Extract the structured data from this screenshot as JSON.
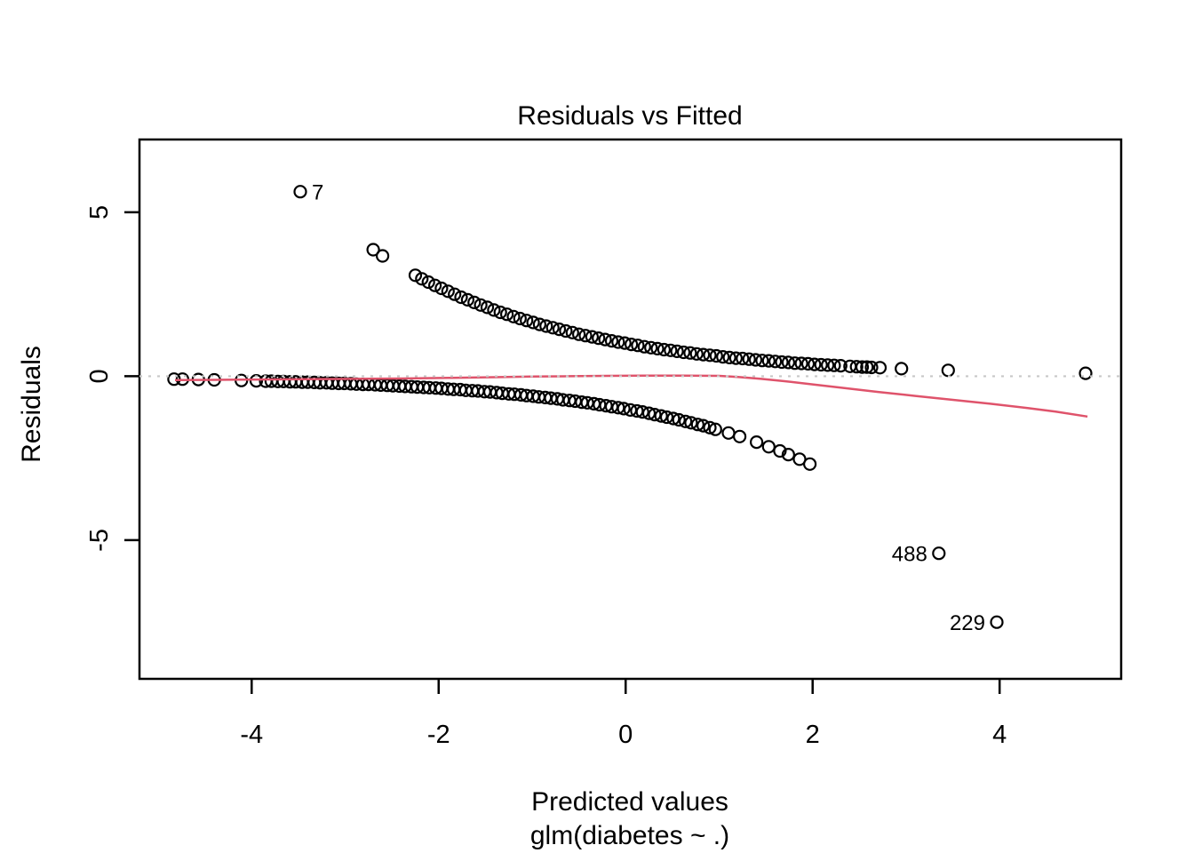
{
  "chart_data": {
    "type": "scatter",
    "title": "Residuals vs Fitted",
    "xlabel": "Predicted values",
    "xlabel_sub": "glm(diabetes ~ .)",
    "ylabel": "Residuals",
    "xlim": [
      -5.2,
      5.3
    ],
    "ylim": [
      -9.23,
      7.22
    ],
    "x_ticks": [
      -4,
      -2,
      0,
      2,
      4
    ],
    "y_ticks": [
      5,
      0,
      -5
    ],
    "grid": false,
    "legend": "none",
    "point_style": {
      "color": "#000000",
      "radius": 6.5,
      "stroke_width": 2.2,
      "filled": false
    },
    "zero_line": {
      "y": 0,
      "color": "#C8C8C8",
      "style": "dotted"
    },
    "smoother": {
      "color": "#DF536B",
      "stroke_width": 2.5,
      "points": [
        [
          -4.82,
          -0.12
        ],
        [
          -4.4,
          -0.11
        ],
        [
          -3.9,
          -0.1
        ],
        [
          -3.4,
          -0.09
        ],
        [
          -2.9,
          -0.08
        ],
        [
          -2.4,
          -0.07
        ],
        [
          -1.9,
          -0.05
        ],
        [
          -1.4,
          -0.03
        ],
        [
          -1.0,
          -0.01
        ],
        [
          -0.6,
          0.0
        ],
        [
          -0.2,
          0.01
        ],
        [
          0.2,
          0.02
        ],
        [
          0.6,
          0.02
        ],
        [
          1.0,
          0.01
        ],
        [
          1.2,
          -0.02
        ],
        [
          1.45,
          -0.08
        ],
        [
          1.7,
          -0.15
        ],
        [
          2.0,
          -0.25
        ],
        [
          2.3,
          -0.35
        ],
        [
          2.7,
          -0.48
        ],
        [
          3.1,
          -0.6
        ],
        [
          3.5,
          -0.72
        ],
        [
          3.9,
          -0.84
        ],
        [
          4.3,
          -0.97
        ],
        [
          4.6,
          -1.08
        ],
        [
          4.94,
          -1.23
        ]
      ]
    },
    "series": [
      {
        "name": "positive-residuals-band",
        "points": [
          [
            -2.7,
            3.86
          ],
          [
            -2.6,
            3.67
          ],
          [
            -2.25,
            3.08
          ],
          [
            -2.18,
            2.97
          ],
          [
            -2.11,
            2.87
          ],
          [
            -2.04,
            2.77
          ],
          [
            -1.97,
            2.68
          ],
          [
            -1.9,
            2.59
          ],
          [
            -1.83,
            2.5
          ],
          [
            -1.76,
            2.41
          ],
          [
            -1.69,
            2.33
          ],
          [
            -1.62,
            2.25
          ],
          [
            -1.55,
            2.17
          ],
          [
            -1.48,
            2.1
          ],
          [
            -1.41,
            2.02
          ],
          [
            -1.34,
            1.95
          ],
          [
            -1.27,
            1.89
          ],
          [
            -1.2,
            1.82
          ],
          [
            -1.13,
            1.76
          ],
          [
            -1.06,
            1.7
          ],
          [
            -0.99,
            1.64
          ],
          [
            -0.92,
            1.58
          ],
          [
            -0.85,
            1.53
          ],
          [
            -0.78,
            1.48
          ],
          [
            -0.71,
            1.43
          ],
          [
            -0.64,
            1.38
          ],
          [
            -0.57,
            1.33
          ],
          [
            -0.5,
            1.28
          ],
          [
            -0.43,
            1.24
          ],
          [
            -0.36,
            1.2
          ],
          [
            -0.29,
            1.16
          ],
          [
            -0.22,
            1.12
          ],
          [
            -0.15,
            1.08
          ],
          [
            -0.08,
            1.04
          ],
          [
            -0.01,
            1.01
          ],
          [
            0.06,
            0.97
          ],
          [
            0.13,
            0.94
          ],
          [
            0.2,
            0.9
          ],
          [
            0.27,
            0.87
          ],
          [
            0.34,
            0.84
          ],
          [
            0.41,
            0.81
          ],
          [
            0.48,
            0.79
          ],
          [
            0.55,
            0.76
          ],
          [
            0.62,
            0.73
          ],
          [
            0.69,
            0.71
          ],
          [
            0.76,
            0.68
          ],
          [
            0.83,
            0.66
          ],
          [
            0.9,
            0.64
          ],
          [
            0.97,
            0.62
          ],
          [
            1.04,
            0.59
          ],
          [
            1.11,
            0.57
          ],
          [
            1.18,
            0.55
          ],
          [
            1.25,
            0.54
          ],
          [
            1.32,
            0.52
          ],
          [
            1.39,
            0.5
          ],
          [
            1.46,
            0.48
          ],
          [
            1.53,
            0.47
          ],
          [
            1.6,
            0.45
          ],
          [
            1.67,
            0.43
          ],
          [
            1.74,
            0.42
          ],
          [
            1.81,
            0.4
          ],
          [
            1.88,
            0.39
          ],
          [
            1.95,
            0.38
          ],
          [
            2.02,
            0.36
          ],
          [
            2.09,
            0.35
          ],
          [
            2.16,
            0.34
          ],
          [
            2.23,
            0.33
          ],
          [
            2.3,
            0.32
          ],
          [
            2.4,
            0.3
          ],
          [
            2.47,
            0.29
          ],
          [
            2.53,
            0.28
          ],
          [
            2.58,
            0.28
          ],
          [
            2.63,
            0.27
          ],
          [
            2.72,
            0.26
          ],
          [
            2.95,
            0.23
          ],
          [
            3.45,
            0.18
          ],
          [
            4.92,
            0.09
          ]
        ]
      },
      {
        "name": "negative-residuals-band",
        "points": [
          [
            -4.83,
            -0.09
          ],
          [
            -4.74,
            -0.09
          ],
          [
            -4.57,
            -0.1
          ],
          [
            -4.4,
            -0.11
          ],
          [
            -4.11,
            -0.13
          ],
          [
            -3.95,
            -0.14
          ],
          [
            -3.85,
            -0.15
          ],
          [
            -3.79,
            -0.15
          ],
          [
            -3.72,
            -0.16
          ],
          [
            -3.66,
            -0.16
          ],
          [
            -3.59,
            -0.17
          ],
          [
            -3.53,
            -0.17
          ],
          [
            -3.46,
            -0.18
          ],
          [
            -3.4,
            -0.18
          ],
          [
            -3.33,
            -0.19
          ],
          [
            -3.27,
            -0.2
          ],
          [
            -3.2,
            -0.2
          ],
          [
            -3.14,
            -0.21
          ],
          [
            -3.07,
            -0.22
          ],
          [
            -3.01,
            -0.22
          ],
          [
            -2.94,
            -0.23
          ],
          [
            -2.88,
            -0.24
          ],
          [
            -2.81,
            -0.25
          ],
          [
            -2.75,
            -0.25
          ],
          [
            -2.68,
            -0.26
          ],
          [
            -2.62,
            -0.27
          ],
          [
            -2.55,
            -0.28
          ],
          [
            -2.49,
            -0.29
          ],
          [
            -2.42,
            -0.3
          ],
          [
            -2.36,
            -0.31
          ],
          [
            -2.29,
            -0.32
          ],
          [
            -2.23,
            -0.33
          ],
          [
            -2.16,
            -0.34
          ],
          [
            -2.1,
            -0.35
          ],
          [
            -2.03,
            -0.36
          ],
          [
            -1.97,
            -0.37
          ],
          [
            -1.9,
            -0.39
          ],
          [
            -1.84,
            -0.4
          ],
          [
            -1.77,
            -0.41
          ],
          [
            -1.71,
            -0.43
          ],
          [
            -1.64,
            -0.44
          ],
          [
            -1.58,
            -0.45
          ],
          [
            -1.51,
            -0.47
          ],
          [
            -1.45,
            -0.48
          ],
          [
            -1.38,
            -0.5
          ],
          [
            -1.32,
            -0.52
          ],
          [
            -1.25,
            -0.54
          ],
          [
            -1.19,
            -0.55
          ],
          [
            -1.12,
            -0.57
          ],
          [
            -1.06,
            -0.59
          ],
          [
            -0.99,
            -0.61
          ],
          [
            -0.93,
            -0.63
          ],
          [
            -0.86,
            -0.65
          ],
          [
            -0.8,
            -0.67
          ],
          [
            -0.73,
            -0.69
          ],
          [
            -0.67,
            -0.72
          ],
          [
            -0.6,
            -0.74
          ],
          [
            -0.54,
            -0.76
          ],
          [
            -0.47,
            -0.79
          ],
          [
            -0.41,
            -0.81
          ],
          [
            -0.34,
            -0.84
          ],
          [
            -0.28,
            -0.87
          ],
          [
            -0.21,
            -0.9
          ],
          [
            -0.15,
            -0.93
          ],
          [
            -0.08,
            -0.96
          ],
          [
            -0.02,
            -0.99
          ],
          [
            0.05,
            -1.03
          ],
          [
            0.12,
            -1.06
          ],
          [
            0.18,
            -1.09
          ],
          [
            0.25,
            -1.13
          ],
          [
            0.31,
            -1.17
          ],
          [
            0.38,
            -1.21
          ],
          [
            0.44,
            -1.25
          ],
          [
            0.51,
            -1.29
          ],
          [
            0.57,
            -1.33
          ],
          [
            0.64,
            -1.38
          ],
          [
            0.7,
            -1.42
          ],
          [
            0.77,
            -1.47
          ],
          [
            0.83,
            -1.51
          ],
          [
            0.9,
            -1.57
          ],
          [
            0.96,
            -1.62
          ],
          [
            1.1,
            -1.73
          ],
          [
            1.22,
            -1.84
          ],
          [
            1.4,
            -2.01
          ],
          [
            1.53,
            -2.15
          ],
          [
            1.65,
            -2.28
          ],
          [
            1.74,
            -2.39
          ],
          [
            1.86,
            -2.53
          ],
          [
            1.97,
            -2.68
          ]
        ]
      }
    ],
    "labeled_points": [
      {
        "label": "7",
        "x": -3.48,
        "y": 5.63,
        "label_side": "right"
      },
      {
        "label": "488",
        "x": 3.35,
        "y": -5.4,
        "label_side": "left"
      },
      {
        "label": "229",
        "x": 3.97,
        "y": -7.5,
        "label_side": "left"
      }
    ]
  }
}
